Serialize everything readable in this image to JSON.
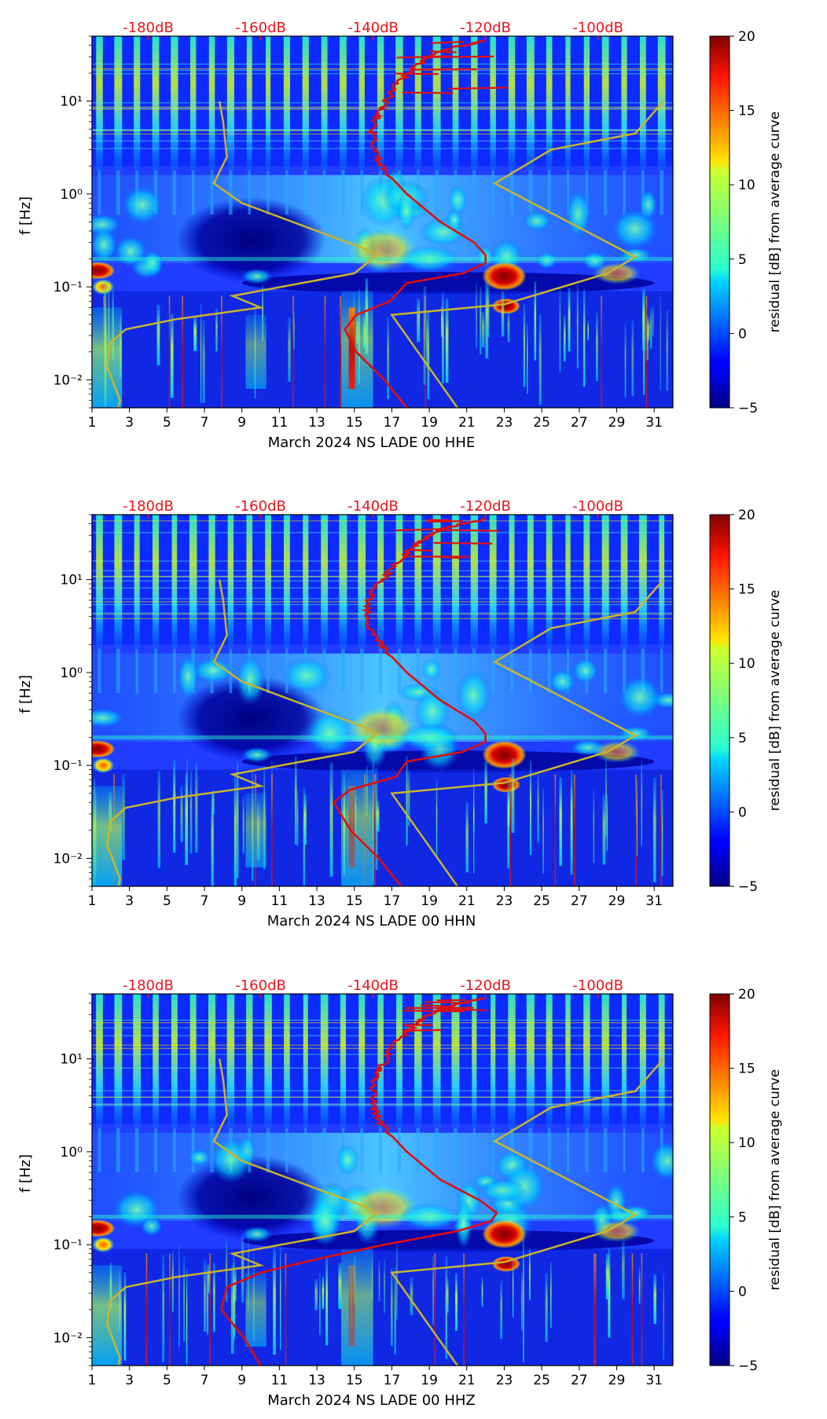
{
  "colors": {
    "db_label": "#e8161b",
    "psd_curve": "#e00d0d",
    "noise_model": "#c9b52c",
    "axis": "#000000",
    "colormap": "jet"
  },
  "panels": [
    {
      "xlabel": "March 2024 NS LADE 00 HHE",
      "ylabel": "f [Hz]",
      "colorbar_label": "residual [dB] from average curve",
      "x_ticks": [
        "1",
        "3",
        "5",
        "7",
        "9",
        "11",
        "13",
        "15",
        "17",
        "19",
        "21",
        "23",
        "25",
        "27",
        "29",
        "31"
      ],
      "y_ticks": [
        "10⁻²",
        "10⁻¹",
        "10⁰",
        "10¹"
      ],
      "db_ticks": [
        "-180dB",
        "-160dB",
        "-140dB",
        "-120dB",
        "-100dB"
      ],
      "cbar_ticks": [
        "20",
        "15",
        "10",
        "5",
        "0",
        "−5"
      ]
    },
    {
      "xlabel": "March 2024 NS LADE 00 HHN",
      "ylabel": "f [Hz]",
      "colorbar_label": "residual [dB] from average curve",
      "x_ticks": [
        "1",
        "3",
        "5",
        "7",
        "9",
        "11",
        "13",
        "15",
        "17",
        "19",
        "21",
        "23",
        "25",
        "27",
        "29",
        "31"
      ],
      "y_ticks": [
        "10⁻²",
        "10⁻¹",
        "10⁰",
        "10¹"
      ],
      "db_ticks": [
        "-180dB",
        "-160dB",
        "-140dB",
        "-120dB",
        "-100dB"
      ],
      "cbar_ticks": [
        "20",
        "15",
        "10",
        "5",
        "0",
        "−5"
      ]
    },
    {
      "xlabel": "March 2024 NS LADE 00 HHZ",
      "ylabel": "f [Hz]",
      "colorbar_label": "residual [dB] from average curve",
      "x_ticks": [
        "1",
        "3",
        "5",
        "7",
        "9",
        "11",
        "13",
        "15",
        "17",
        "19",
        "21",
        "23",
        "25",
        "27",
        "29",
        "31"
      ],
      "y_ticks": [
        "10⁻²",
        "10⁻¹",
        "10⁰",
        "10¹"
      ],
      "db_ticks": [
        "-180dB",
        "-160dB",
        "-140dB",
        "-120dB",
        "-100dB"
      ],
      "cbar_ticks": [
        "20",
        "15",
        "10",
        "5",
        "0",
        "−5"
      ]
    }
  ],
  "chart_data": [
    {
      "type": "heatmap",
      "title": "",
      "xlabel": "March 2024 NS LADE 00 HHE",
      "ylabel": "f [Hz]",
      "x_range": [
        1,
        32
      ],
      "y_range": [
        0.005,
        50
      ],
      "y_scale": "log",
      "secondary_x_label_values_db": [
        -180,
        -160,
        -140,
        -120,
        -100
      ],
      "colorbar": {
        "label": "residual [dB] from average curve",
        "range": [
          -5,
          20
        ],
        "ticks": [
          -5,
          0,
          5,
          10,
          15,
          20
        ]
      },
      "series": [
        {
          "name": "average PSD curve (red)",
          "points_db_vs_hz": [
            [
              -134,
              0.005
            ],
            [
              -138,
              0.01
            ],
            [
              -143,
              0.02
            ],
            [
              -145,
              0.035
            ],
            [
              -143,
              0.05
            ],
            [
              -137,
              0.07
            ],
            [
              -134,
              0.11
            ],
            [
              -124,
              0.14
            ],
            [
              -120,
              0.18
            ],
            [
              -120,
              0.22
            ],
            [
              -122,
              0.3
            ],
            [
              -128,
              0.5
            ],
            [
              -134,
              1.0
            ],
            [
              -138,
              1.8
            ],
            [
              -140,
              3
            ],
            [
              -140,
              6
            ],
            [
              -138,
              9
            ],
            [
              -136,
              15
            ],
            [
              -132,
              25
            ],
            [
              -128,
              35
            ],
            [
              -120,
              45
            ]
          ]
        },
        {
          "name": "noise model envelope (yellow)",
          "points_day_vs_hz": [
            [
              2.4,
              0.005
            ],
            [
              2.5,
              0.006
            ],
            [
              1.8,
              0.014
            ],
            [
              2.0,
              0.025
            ],
            [
              2.8,
              0.035
            ],
            [
              5.5,
              0.045
            ],
            [
              10.0,
              0.06
            ],
            [
              8.5,
              0.08
            ],
            [
              15,
              0.14
            ],
            [
              16.2,
              0.22
            ],
            [
              15.5,
              0.26
            ],
            [
              9,
              0.8
            ],
            [
              7.5,
              1.3
            ],
            [
              8.2,
              2.5
            ],
            [
              8,
              6
            ],
            [
              7.8,
              10
            ],
            [
              20.5,
              0.005
            ],
            [
              17,
              0.05
            ],
            [
              23,
              0.065
            ],
            [
              28.5,
              0.14
            ],
            [
              30,
              0.21
            ],
            [
              22.5,
              1.3
            ],
            [
              25.5,
              3.0
            ],
            [
              30,
              4.5
            ],
            [
              31.5,
              10
            ]
          ]
        }
      ]
    },
    {
      "type": "heatmap",
      "title": "",
      "xlabel": "March 2024 NS LADE 00 HHN",
      "ylabel": "f [Hz]",
      "x_range": [
        1,
        32
      ],
      "y_range": [
        0.005,
        50
      ],
      "y_scale": "log",
      "secondary_x_label_values_db": [
        -180,
        -160,
        -140,
        -120,
        -100
      ],
      "colorbar": {
        "label": "residual [dB] from average curve",
        "range": [
          -5,
          20
        ],
        "ticks": [
          -5,
          0,
          5,
          10,
          15,
          20
        ]
      },
      "series": [
        {
          "name": "average PSD curve (red)",
          "points_db_vs_hz": [
            [
              -135,
              0.005
            ],
            [
              -139,
              0.01
            ],
            [
              -144,
              0.02
            ],
            [
              -147,
              0.04
            ],
            [
              -144,
              0.055
            ],
            [
              -136,
              0.075
            ],
            [
              -134,
              0.11
            ],
            [
              -124,
              0.14
            ],
            [
              -120,
              0.18
            ],
            [
              -120,
              0.22
            ],
            [
              -122,
              0.3
            ],
            [
              -128,
              0.5
            ],
            [
              -134,
              1.0
            ],
            [
              -138,
              1.8
            ],
            [
              -141,
              3
            ],
            [
              -141,
              6
            ],
            [
              -139,
              9
            ],
            [
              -136,
              15
            ],
            [
              -132,
              25
            ],
            [
              -128,
              35
            ],
            [
              -120,
              45
            ]
          ]
        },
        {
          "name": "noise model envelope (yellow)",
          "points_day_vs_hz": [
            [
              2.4,
              0.005
            ],
            [
              2.5,
              0.006
            ],
            [
              1.8,
              0.014
            ],
            [
              2.0,
              0.025
            ],
            [
              2.8,
              0.035
            ],
            [
              5.5,
              0.045
            ],
            [
              10.0,
              0.06
            ],
            [
              8.5,
              0.08
            ],
            [
              15,
              0.14
            ],
            [
              16.2,
              0.22
            ],
            [
              15.5,
              0.26
            ],
            [
              9,
              0.8
            ],
            [
              7.5,
              1.3
            ],
            [
              8.2,
              2.5
            ],
            [
              8,
              6
            ],
            [
              7.8,
              10
            ],
            [
              20.5,
              0.005
            ],
            [
              17,
              0.05
            ],
            [
              23,
              0.065
            ],
            [
              28.5,
              0.14
            ],
            [
              30,
              0.21
            ],
            [
              22.5,
              1.3
            ],
            [
              25.5,
              3.0
            ],
            [
              30,
              4.5
            ],
            [
              31.5,
              10
            ]
          ]
        }
      ]
    },
    {
      "type": "heatmap",
      "title": "",
      "xlabel": "March 2024 NS LADE 00 HHZ",
      "ylabel": "f [Hz]",
      "x_range": [
        1,
        32
      ],
      "y_range": [
        0.005,
        50
      ],
      "y_scale": "log",
      "secondary_x_label_values_db": [
        -180,
        -160,
        -140,
        -120,
        -100
      ],
      "colorbar": {
        "label": "residual [dB] from average curve",
        "range": [
          -5,
          20
        ],
        "ticks": [
          -5,
          0,
          5,
          10,
          15,
          20
        ]
      },
      "series": [
        {
          "name": "average PSD curve (red)",
          "points_db_vs_hz": [
            [
              -160,
              0.005
            ],
            [
              -163,
              0.01
            ],
            [
              -167,
              0.02
            ],
            [
              -166,
              0.035
            ],
            [
              -160,
              0.05
            ],
            [
              -150,
              0.07
            ],
            [
              -138,
              0.1
            ],
            [
              -125,
              0.14
            ],
            [
              -119,
              0.18
            ],
            [
              -118,
              0.22
            ],
            [
              -121,
              0.3
            ],
            [
              -128,
              0.5
            ],
            [
              -134,
              1.0
            ],
            [
              -138,
              1.8
            ],
            [
              -140,
              3
            ],
            [
              -140,
              6
            ],
            [
              -138,
              9
            ],
            [
              -136,
              15
            ],
            [
              -132,
              25
            ],
            [
              -128,
              35
            ],
            [
              -120,
              45
            ]
          ]
        },
        {
          "name": "noise model envelope (yellow)",
          "points_day_vs_hz": [
            [
              2.4,
              0.005
            ],
            [
              2.5,
              0.006
            ],
            [
              1.8,
              0.014
            ],
            [
              2.0,
              0.025
            ],
            [
              2.8,
              0.035
            ],
            [
              5.5,
              0.045
            ],
            [
              10.0,
              0.06
            ],
            [
              8.5,
              0.08
            ],
            [
              15,
              0.14
            ],
            [
              16.2,
              0.22
            ],
            [
              15.5,
              0.26
            ],
            [
              9,
              0.8
            ],
            [
              7.5,
              1.3
            ],
            [
              8.2,
              2.5
            ],
            [
              8,
              6
            ],
            [
              7.8,
              10
            ],
            [
              20.5,
              0.005
            ],
            [
              17,
              0.05
            ],
            [
              23,
              0.065
            ],
            [
              28.5,
              0.14
            ],
            [
              30,
              0.21
            ],
            [
              22.5,
              1.3
            ],
            [
              25.5,
              3.0
            ],
            [
              30,
              4.5
            ],
            [
              31.5,
              10
            ]
          ]
        }
      ]
    }
  ]
}
